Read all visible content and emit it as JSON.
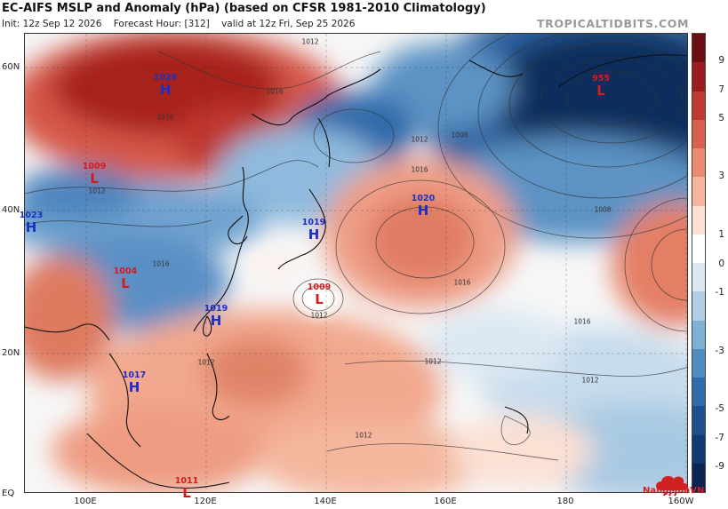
{
  "header": {
    "title": "EC-AIFS MSLP and Anomaly (hPa) (based on CFSR 1981-2010 Climatology)",
    "init": "Init: 12z Sep 12 2026",
    "forecast_hour": "Forecast Hour: [312]",
    "valid": "valid at 12z Fri, Sep 25 2026",
    "brand": "TROPICALTIDBITS.COM"
  },
  "axes": {
    "lat_ticks": [
      "60N",
      "40N",
      "20N",
      "EQ"
    ],
    "lon_ticks": [
      "100E",
      "120E",
      "140E",
      "160E",
      "180",
      "160W"
    ]
  },
  "colorbar": {
    "labels": [
      "9",
      "7",
      "5",
      "3",
      "1",
      "0",
      "-1",
      "-3",
      "-5",
      "-7",
      "-9"
    ],
    "colors": [
      "#6b0f14",
      "#9a1c1f",
      "#c03a33",
      "#d9604c",
      "#e88a6f",
      "#f4b79e",
      "#fbe0d3",
      "#ffffff",
      "#dbe8f2",
      "#b0cde3",
      "#7fb0d6",
      "#4f8cc2",
      "#2f6aab",
      "#1d4f8f",
      "#123a72",
      "#0a2550"
    ]
  },
  "pressure_systems": [
    {
      "type": "H",
      "value": "1029"
    },
    {
      "type": "L",
      "value": "1009"
    },
    {
      "type": "H",
      "value": "1023"
    },
    {
      "type": "L",
      "value": "1004"
    },
    {
      "type": "H",
      "value": "1019"
    },
    {
      "type": "H",
      "value": "1019"
    },
    {
      "type": "L",
      "value": "1009"
    },
    {
      "type": "H",
      "value": "1020"
    },
    {
      "type": "L",
      "value": "955"
    },
    {
      "type": "H",
      "value": "1017"
    },
    {
      "type": "L",
      "value": "1011"
    }
  ],
  "isobar_labels": [
    "1012",
    "1016",
    "1016",
    "1012",
    "1008",
    "1016",
    "1012",
    "1016",
    "1008",
    "1016",
    "1012",
    "1012",
    "1012",
    "1012",
    "1016",
    "1012"
  ],
  "logo": {
    "text": "NangMuaVN"
  }
}
